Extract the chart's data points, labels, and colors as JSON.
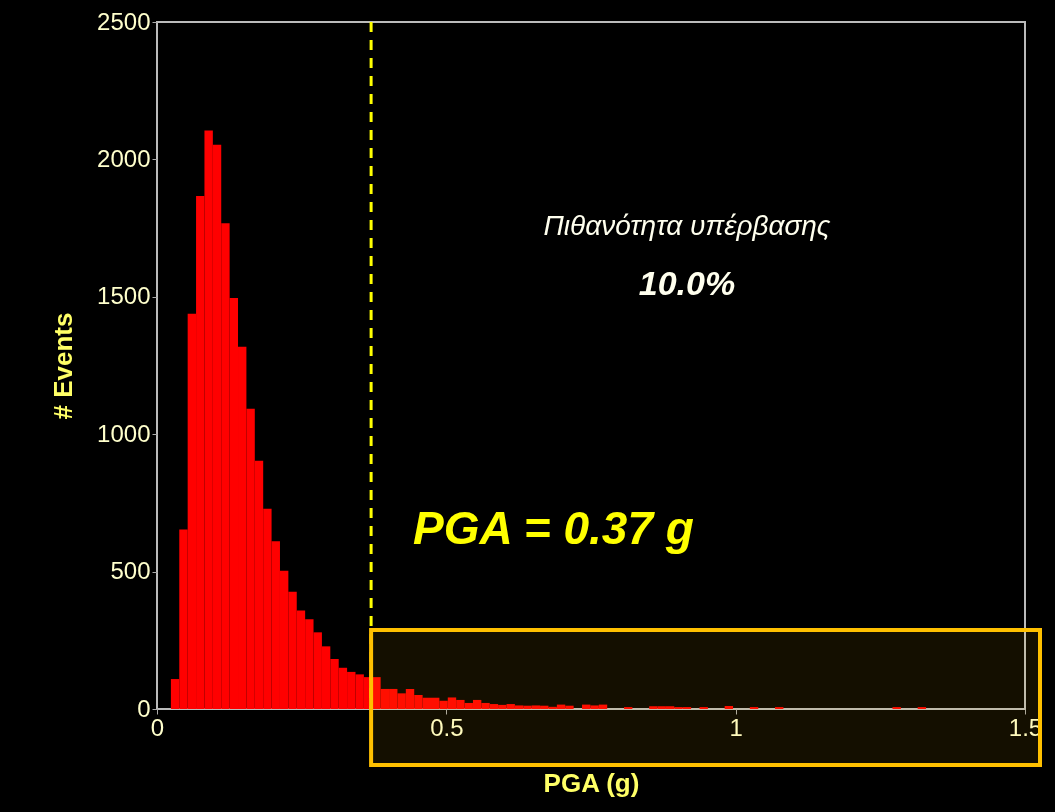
{
  "chart_data": {
    "type": "histogram",
    "xlabel": "PGA (g)",
    "ylabel": "# Events",
    "bins": [
      0.024,
      0.0385,
      0.053,
      0.0675,
      0.082,
      0.0965,
      0.111,
      0.1255,
      0.14,
      0.1545,
      0.169,
      0.1835,
      0.198,
      0.2125,
      0.227,
      0.2415,
      0.256,
      0.2705,
      0.285,
      0.2995,
      0.314,
      0.3285,
      0.343,
      0.3575,
      0.372,
      0.3865,
      0.401,
      0.4155,
      0.43,
      0.4445,
      0.459,
      0.4735,
      0.488,
      0.5025,
      0.517,
      0.5315,
      0.546,
      0.5605,
      0.575,
      0.5895,
      0.604,
      0.6185,
      0.633,
      0.6475,
      0.662,
      0.6765,
      0.691,
      0.7055,
      0.72,
      0.7345,
      0.749,
      0.7635,
      0.778,
      0.7925,
      0.807,
      0.8215,
      0.836,
      0.8505,
      0.865,
      0.8795,
      0.894,
      0.9085,
      0.923,
      0.9375,
      0.952,
      0.9665,
      0.981,
      0.9955,
      1.01,
      1.0245,
      1.039,
      1.0535,
      1.068,
      1.0825,
      1.097,
      1.1115,
      1.126,
      1.1405,
      1.155,
      1.1695,
      1.184,
      1.1985,
      1.213,
      1.2275,
      1.242,
      1.2565,
      1.271,
      1.2855,
      1.3,
      1.3145,
      1.329
    ],
    "values": [
      109,
      653,
      1438,
      1867,
      2105,
      2053,
      1768,
      1496,
      1318,
      1093,
      903,
      729,
      610,
      503,
      427,
      358,
      327,
      279,
      228,
      182,
      150,
      135,
      126,
      116,
      116,
      73,
      73,
      57,
      73,
      51,
      41,
      41,
      30,
      42,
      33,
      22,
      33,
      22,
      18,
      15,
      18,
      13,
      12,
      13,
      12,
      8,
      16,
      12,
      0,
      16,
      13,
      16,
      0,
      0,
      7,
      0,
      0,
      10,
      10,
      10,
      7,
      7,
      0,
      7,
      0,
      0,
      11,
      0,
      0,
      7,
      0,
      0,
      7,
      0,
      0,
      0,
      0,
      0,
      0,
      0,
      0,
      0,
      0,
      0,
      0,
      0,
      7,
      0,
      0,
      7
    ],
    "color": "#ff0000",
    "xlim": [
      0,
      1.5
    ],
    "xticks": [
      0,
      0.5,
      1,
      1.5
    ],
    "ylim": [
      0,
      2500
    ],
    "yticks": [
      0,
      500,
      1000,
      1500,
      2000,
      2500
    ],
    "grid": false,
    "ref_lines": [
      {
        "axis": "x",
        "value": 0.37,
        "label": "PGA = 0.37 g",
        "color": "#ffff00",
        "line_style": "dashed"
      }
    ],
    "bands": [
      {
        "axis": "x",
        "from": 0.37,
        "to": 1.5,
        "color": "#ffc000"
      }
    ],
    "annotations": [
      "Πιθανότητα υπέρβασης",
      "10.0%"
    ]
  }
}
